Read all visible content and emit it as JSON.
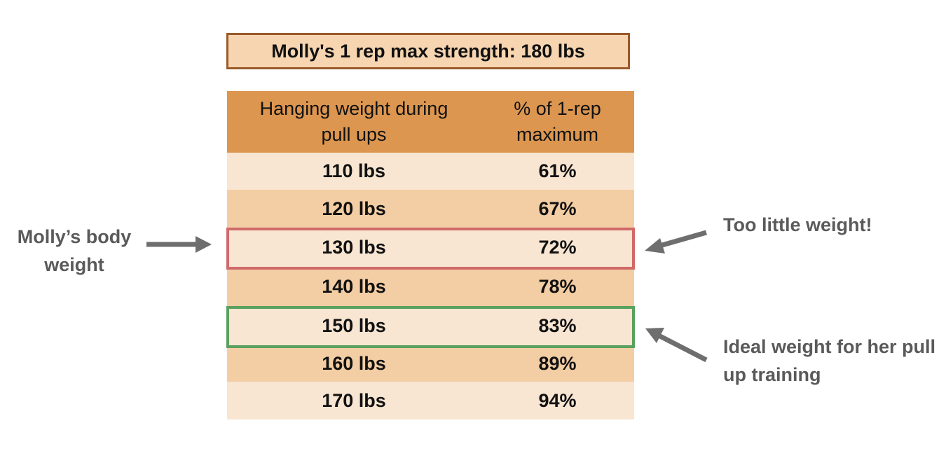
{
  "title": "Molly's 1 rep max strength: 180 lbs",
  "table": {
    "headers": [
      "Hanging weight during pull ups",
      "% of 1-rep maximum"
    ],
    "rows": [
      {
        "weight": "110 lbs",
        "percent": "61%"
      },
      {
        "weight": "120 lbs",
        "percent": "67%"
      },
      {
        "weight": "130 lbs",
        "percent": "72%"
      },
      {
        "weight": "140 lbs",
        "percent": "78%"
      },
      {
        "weight": "150 lbs",
        "percent": "83%"
      },
      {
        "weight": "160 lbs",
        "percent": "89%"
      },
      {
        "weight": "170 lbs",
        "percent": "94%"
      }
    ]
  },
  "annotations": {
    "body_weight": "Molly’s body weight",
    "too_little": "Too little weight!",
    "ideal": "Ideal weight for her pull up training"
  },
  "colors": {
    "header": "#dc9650",
    "row_light": "#f8e5d2",
    "row_dark": "#f3cda3",
    "highlight_red": "#d06a6a",
    "highlight_green": "#5aa05e",
    "arrow": "#6e6e6e"
  }
}
